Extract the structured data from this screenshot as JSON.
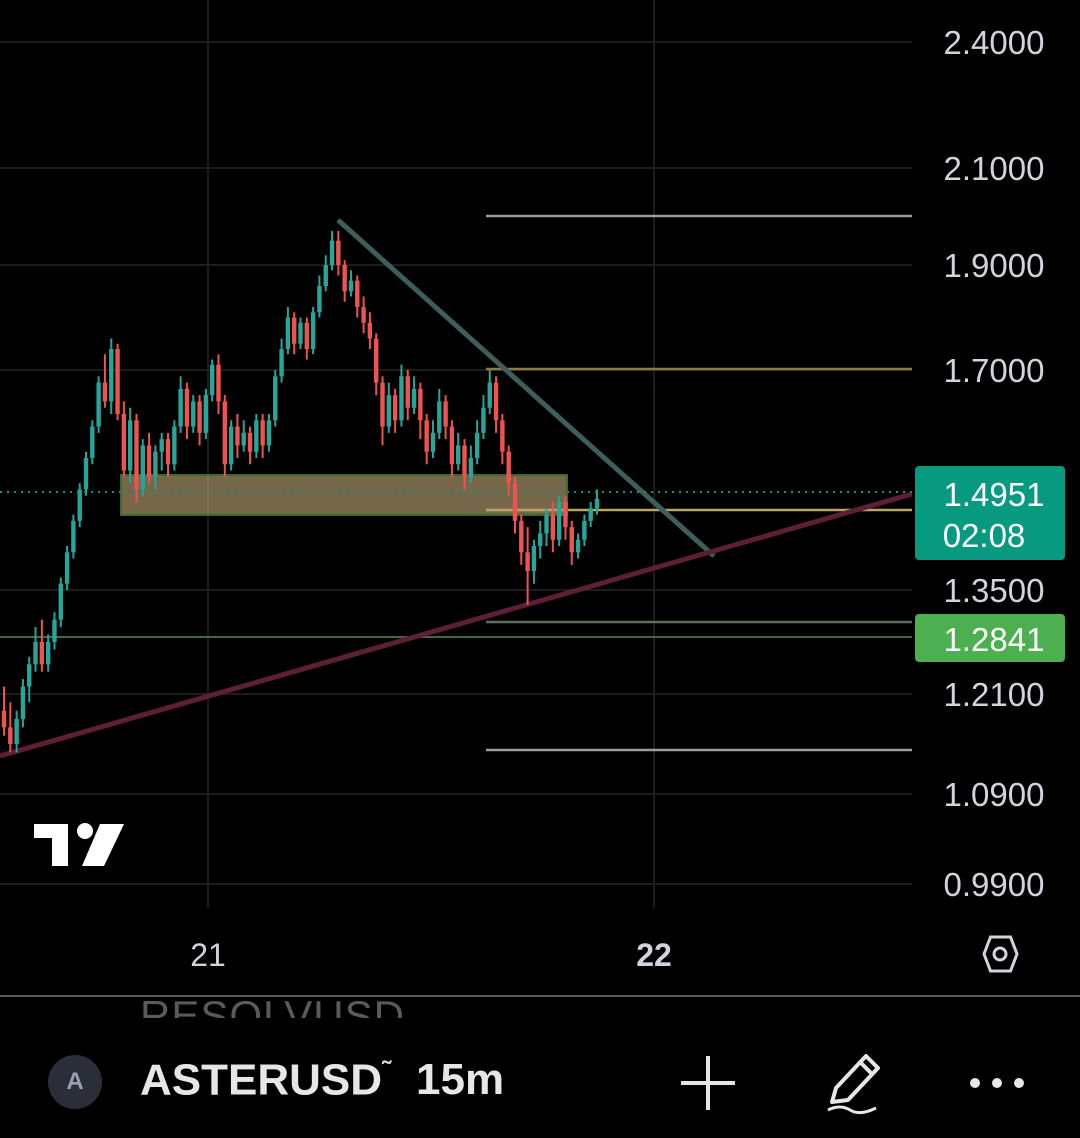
{
  "chart_data": {
    "type": "candlestick",
    "symbol": "ASTERUSD",
    "timeframe": "15m",
    "y_ticks": [
      "2.4000",
      "2.1000",
      "1.9000",
      "1.7000",
      "1.3500",
      "1.2100",
      "1.0900",
      "0.9900"
    ],
    "x_ticks": [
      "21",
      "22"
    ],
    "last_price": "1.4951",
    "countdown": "02:08",
    "marked_level": "1.2841",
    "colors": {
      "up": "#26a69a",
      "down": "#ef5350",
      "last_price_tag": "#089981",
      "marked_tag": "#4caf50"
    },
    "candles": [
      [
        1.19,
        1.22,
        1.16,
        1.17
      ],
      [
        1.17,
        1.2,
        1.14,
        1.15
      ],
      [
        1.15,
        1.19,
        1.14,
        1.18
      ],
      [
        1.18,
        1.23,
        1.17,
        1.22
      ],
      [
        1.22,
        1.26,
        1.2,
        1.25
      ],
      [
        1.25,
        1.3,
        1.24,
        1.28
      ],
      [
        1.28,
        1.31,
        1.24,
        1.25
      ],
      [
        1.25,
        1.29,
        1.24,
        1.28
      ],
      [
        1.28,
        1.32,
        1.27,
        1.31
      ],
      [
        1.31,
        1.37,
        1.3,
        1.36
      ],
      [
        1.36,
        1.42,
        1.35,
        1.41
      ],
      [
        1.41,
        1.47,
        1.4,
        1.46
      ],
      [
        1.46,
        1.52,
        1.45,
        1.51
      ],
      [
        1.51,
        1.57,
        1.5,
        1.56
      ],
      [
        1.56,
        1.62,
        1.55,
        1.61
      ],
      [
        1.61,
        1.69,
        1.6,
        1.68
      ],
      [
        1.68,
        1.73,
        1.64,
        1.65
      ],
      [
        1.65,
        1.76,
        1.63,
        1.74
      ],
      [
        1.74,
        1.75,
        1.62,
        1.63
      ],
      [
        1.63,
        1.65,
        1.53,
        1.54
      ],
      [
        1.54,
        1.64,
        1.52,
        1.62
      ],
      [
        1.62,
        1.63,
        1.49,
        1.51
      ],
      [
        1.51,
        1.59,
        1.5,
        1.58
      ],
      [
        1.58,
        1.6,
        1.52,
        1.53
      ],
      [
        1.53,
        1.58,
        1.51,
        1.57
      ],
      [
        1.57,
        1.6,
        1.54,
        1.59
      ],
      [
        1.59,
        1.6,
        1.53,
        1.55
      ],
      [
        1.55,
        1.62,
        1.54,
        1.61
      ],
      [
        1.61,
        1.69,
        1.6,
        1.67
      ],
      [
        1.67,
        1.68,
        1.59,
        1.61
      ],
      [
        1.61,
        1.66,
        1.6,
        1.65
      ],
      [
        1.65,
        1.66,
        1.58,
        1.6
      ],
      [
        1.6,
        1.67,
        1.59,
        1.66
      ],
      [
        1.66,
        1.72,
        1.65,
        1.71
      ],
      [
        1.71,
        1.73,
        1.63,
        1.65
      ],
      [
        1.65,
        1.66,
        1.53,
        1.55
      ],
      [
        1.55,
        1.62,
        1.54,
        1.61
      ],
      [
        1.61,
        1.63,
        1.56,
        1.58
      ],
      [
        1.58,
        1.62,
        1.57,
        1.6
      ],
      [
        1.6,
        1.61,
        1.55,
        1.57
      ],
      [
        1.57,
        1.63,
        1.56,
        1.62
      ],
      [
        1.62,
        1.63,
        1.56,
        1.58
      ],
      [
        1.58,
        1.63,
        1.57,
        1.62
      ],
      [
        1.62,
        1.7,
        1.61,
        1.69
      ],
      [
        1.69,
        1.76,
        1.68,
        1.74
      ],
      [
        1.74,
        1.82,
        1.73,
        1.8
      ],
      [
        1.8,
        1.81,
        1.73,
        1.75
      ],
      [
        1.75,
        1.8,
        1.74,
        1.79
      ],
      [
        1.79,
        1.8,
        1.72,
        1.74
      ],
      [
        1.74,
        1.82,
        1.73,
        1.81
      ],
      [
        1.81,
        1.88,
        1.8,
        1.86
      ],
      [
        1.86,
        1.92,
        1.85,
        1.9
      ],
      [
        1.9,
        1.97,
        1.89,
        1.95
      ],
      [
        1.95,
        1.97,
        1.88,
        1.9
      ],
      [
        1.9,
        1.91,
        1.83,
        1.85
      ],
      [
        1.85,
        1.89,
        1.84,
        1.87
      ],
      [
        1.87,
        1.88,
        1.8,
        1.82
      ],
      [
        1.82,
        1.84,
        1.77,
        1.79
      ],
      [
        1.79,
        1.81,
        1.74,
        1.76
      ],
      [
        1.76,
        1.77,
        1.66,
        1.68
      ],
      [
        1.68,
        1.69,
        1.58,
        1.61
      ],
      [
        1.61,
        1.68,
        1.6,
        1.66
      ],
      [
        1.66,
        1.67,
        1.6,
        1.62
      ],
      [
        1.62,
        1.71,
        1.61,
        1.69
      ],
      [
        1.69,
        1.7,
        1.62,
        1.64
      ],
      [
        1.64,
        1.69,
        1.63,
        1.67
      ],
      [
        1.67,
        1.68,
        1.59,
        1.62
      ],
      [
        1.62,
        1.63,
        1.55,
        1.57
      ],
      [
        1.57,
        1.62,
        1.56,
        1.6
      ],
      [
        1.6,
        1.67,
        1.59,
        1.65
      ],
      [
        1.65,
        1.66,
        1.59,
        1.61
      ],
      [
        1.61,
        1.62,
        1.53,
        1.55
      ],
      [
        1.55,
        1.6,
        1.54,
        1.58
      ],
      [
        1.58,
        1.59,
        1.51,
        1.53
      ],
      [
        1.53,
        1.58,
        1.52,
        1.56
      ],
      [
        1.56,
        1.62,
        1.55,
        1.6
      ],
      [
        1.6,
        1.66,
        1.59,
        1.64
      ],
      [
        1.64,
        1.7,
        1.63,
        1.68
      ],
      [
        1.68,
        1.69,
        1.6,
        1.62
      ],
      [
        1.62,
        1.63,
        1.55,
        1.57
      ],
      [
        1.57,
        1.58,
        1.5,
        1.52
      ],
      [
        1.52,
        1.53,
        1.44,
        1.46
      ],
      [
        1.46,
        1.47,
        1.39,
        1.41
      ],
      [
        1.41,
        1.45,
        1.33,
        1.38
      ],
      [
        1.38,
        1.43,
        1.36,
        1.42
      ],
      [
        1.42,
        1.46,
        1.4,
        1.44
      ],
      [
        1.44,
        1.48,
        1.42,
        1.47
      ],
      [
        1.47,
        1.49,
        1.41,
        1.43
      ],
      [
        1.43,
        1.5,
        1.42,
        1.49
      ],
      [
        1.49,
        1.5,
        1.43,
        1.45
      ],
      [
        1.45,
        1.46,
        1.39,
        1.41
      ],
      [
        1.41,
        1.44,
        1.4,
        1.43
      ],
      [
        1.43,
        1.47,
        1.42,
        1.46
      ],
      [
        1.46,
        1.49,
        1.45,
        1.48
      ],
      [
        1.48,
        1.51,
        1.47,
        1.4951
      ]
    ]
  },
  "bottom_bar": {
    "ghost_symbol": "RESOLVUSD",
    "avatar_letter": "A",
    "symbol": "ASTERUSD",
    "symbol_mark": "˜",
    "timeframe": "15m",
    "add_icon": "plus-icon",
    "draw_icon": "pencil-icon",
    "more_icon": "more-icon"
  }
}
